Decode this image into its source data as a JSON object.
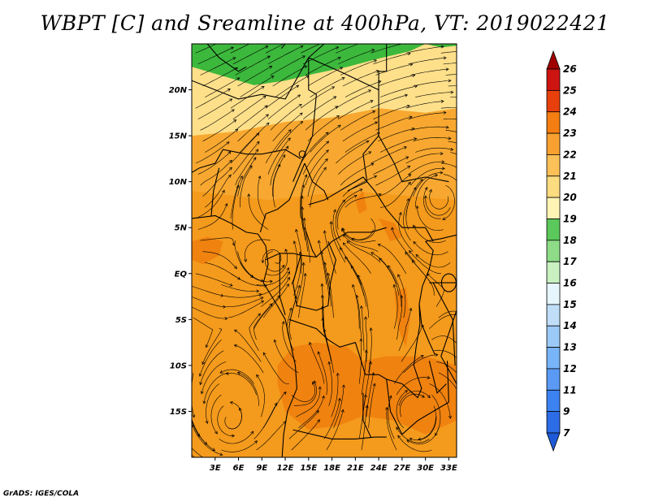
{
  "title": "WBPT [C] and Sreamline at 400hPa, VT: 2019022421",
  "credit": "GrADS: IGES/COLA",
  "colors": {
    "ocean_fill": "#f8a830",
    "land_fill": "#f49a1c",
    "warm_band": "#f0820f",
    "cool_band": "#ffe08a",
    "green_band": "#3cb83c",
    "streamline": "#000000",
    "boundary": "#000000"
  },
  "chart_data": {
    "type": "heatmap",
    "variable": "Wet-bulb potential temperature (WBPT) with streamlines",
    "unit": "C",
    "level": "400hPa",
    "valid_time": "2019022421",
    "lon_range": [
      0,
      34
    ],
    "lat_range": [
      -20,
      25
    ],
    "x_ticks": [
      {
        "value": 3,
        "label": "3E"
      },
      {
        "value": 6,
        "label": "6E"
      },
      {
        "value": 9,
        "label": "9E"
      },
      {
        "value": 12,
        "label": "12E"
      },
      {
        "value": 15,
        "label": "15E"
      },
      {
        "value": 18,
        "label": "18E"
      },
      {
        "value": 21,
        "label": "21E"
      },
      {
        "value": 24,
        "label": "24E"
      },
      {
        "value": 27,
        "label": "27E"
      },
      {
        "value": 30,
        "label": "30E"
      },
      {
        "value": 33,
        "label": "33E"
      }
    ],
    "y_ticks": [
      {
        "value": 20,
        "label": "20N"
      },
      {
        "value": 15,
        "label": "15N"
      },
      {
        "value": 10,
        "label": "10N"
      },
      {
        "value": 5,
        "label": "5N"
      },
      {
        "value": 0,
        "label": "EQ"
      },
      {
        "value": -5,
        "label": "5S"
      },
      {
        "value": -10,
        "label": "10S"
      },
      {
        "value": -15,
        "label": "15S"
      }
    ],
    "colorbar": {
      "levels": [
        "7",
        "9",
        "11",
        "12",
        "13",
        "14",
        "15",
        "16",
        "17",
        "18",
        "19",
        "20",
        "21",
        "22",
        "23",
        "24",
        "25",
        "26"
      ],
      "colors": [
        "#1e5ad8",
        "#2c6ce6",
        "#3c82f0",
        "#5a9af4",
        "#78b4f8",
        "#9ccaf8",
        "#c0def8",
        "#e6f6fc",
        "#c8f0c0",
        "#8edc88",
        "#5ac85a",
        "#fff4b4",
        "#fcdc80",
        "#fcc058",
        "#f8a030",
        "#f47e12",
        "#e8400c",
        "#cc1410",
        "#a00000"
      ],
      "extend": "both"
    },
    "fields": [
      {
        "name": "green band (17-18)",
        "lats": [
          22.3,
          25
        ]
      },
      {
        "name": "pale band (19-20)",
        "lats": [
          15,
          22.3
        ]
      },
      {
        "name": "orange (21-22)",
        "lats": [
          -20,
          15
        ]
      },
      {
        "name": "warm core (23)",
        "lats": [
          -18,
          -8
        ]
      }
    ]
  }
}
